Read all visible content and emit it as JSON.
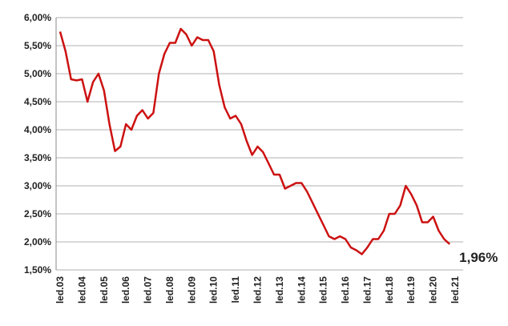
{
  "chart_data": {
    "type": "line",
    "categories": [
      "led.03",
      null,
      null,
      null,
      "led.04",
      null,
      null,
      null,
      "led.05",
      null,
      null,
      null,
      "led.06",
      null,
      null,
      null,
      "led.07",
      null,
      null,
      null,
      "led.08",
      null,
      null,
      null,
      "led.09",
      null,
      null,
      null,
      "led.10",
      null,
      null,
      null,
      "led.11",
      null,
      null,
      null,
      "led.12",
      null,
      null,
      null,
      "led.13",
      null,
      null,
      null,
      "led.14",
      null,
      null,
      null,
      "led.15",
      null,
      null,
      null,
      "led.16",
      null,
      null,
      null,
      "led.17",
      null,
      null,
      null,
      "led.18",
      null,
      null,
      null,
      "led.19",
      null,
      null,
      null,
      "led.20",
      null,
      null,
      null,
      "led.21"
    ],
    "series": [
      {
        "color": "#cc1111",
        "values": [
          5.75,
          5.4,
          4.9,
          4.88,
          4.9,
          4.5,
          4.85,
          5.0,
          4.7,
          4.1,
          3.62,
          3.7,
          4.1,
          4.0,
          4.25,
          4.35,
          4.2,
          4.3,
          5.0,
          5.35,
          5.55,
          5.55,
          5.8,
          5.7,
          5.5,
          5.65,
          5.6,
          5.6,
          5.4,
          4.8,
          4.4,
          4.2,
          4.25,
          4.1,
          3.8,
          3.55,
          3.7,
          3.6,
          3.4,
          3.2,
          3.2,
          2.95,
          3.0,
          3.05,
          3.05,
          2.9,
          2.7,
          2.5,
          2.3,
          2.1,
          2.05,
          2.1,
          2.05,
          1.9,
          1.85,
          1.78,
          1.9,
          2.05,
          2.05,
          2.2,
          2.5,
          2.5,
          2.65,
          3.0,
          2.85,
          2.65,
          2.35,
          2.35,
          2.45,
          2.2,
          2.05,
          1.96,
          null
        ]
      }
    ],
    "last_value_label": "1,96%",
    "ylim": [
      1.5,
      6.0
    ],
    "yticks": [
      {
        "value": 1.5,
        "label": "1,50%"
      },
      {
        "value": 2.0,
        "label": "2,00%"
      },
      {
        "value": 2.5,
        "label": "2,50%"
      },
      {
        "value": 3.0,
        "label": "3,00%"
      },
      {
        "value": 3.5,
        "label": "3,50%"
      },
      {
        "value": 4.0,
        "label": "4,00%"
      },
      {
        "value": 4.5,
        "label": "4,50%"
      },
      {
        "value": 5.0,
        "label": "5,00%"
      },
      {
        "value": 5.5,
        "label": "5,50%"
      },
      {
        "value": 6.0,
        "label": "6,00%"
      }
    ],
    "grid": true
  }
}
